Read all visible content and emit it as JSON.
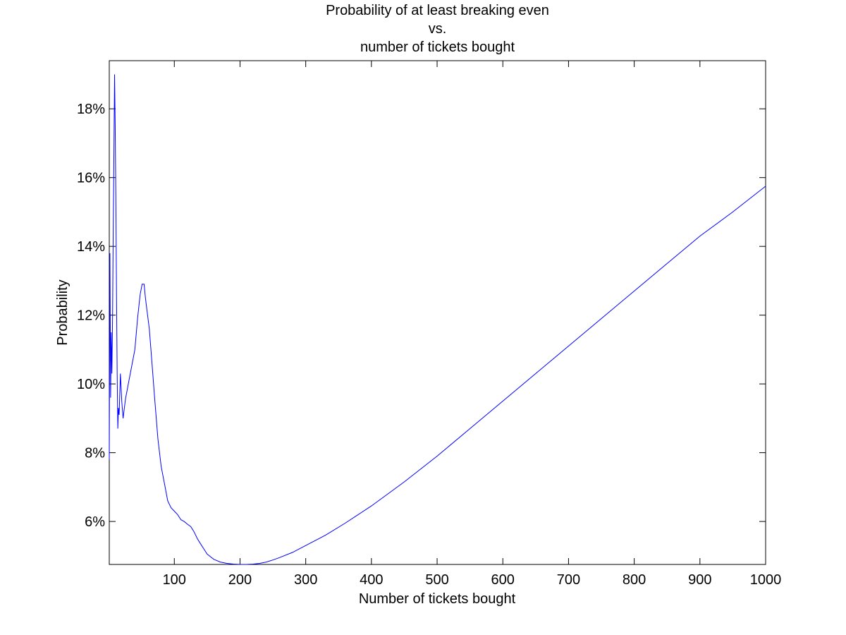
{
  "chart_data": {
    "type": "line",
    "title_lines": [
      "Probability of at least breaking even",
      "vs.",
      "number of tickets bought"
    ],
    "xlabel": "Number of tickets bought",
    "ylabel": "Probability",
    "xlim": [
      1,
      1000
    ],
    "ylim": [
      4.75,
      19.4
    ],
    "x_ticks": [
      100,
      200,
      300,
      400,
      500,
      600,
      700,
      800,
      900,
      1000
    ],
    "x_tick_labels": [
      "100",
      "200",
      "300",
      "400",
      "500",
      "600",
      "700",
      "800",
      "900",
      "1000"
    ],
    "y_ticks": [
      6,
      8,
      10,
      12,
      14,
      16,
      18
    ],
    "y_tick_labels": [
      "6%",
      "8%",
      "10%",
      "12%",
      "14%",
      "16%",
      "18%"
    ],
    "grid": false,
    "legend": "none",
    "series": [
      {
        "color": "#0000ff",
        "x": [
          1,
          2,
          3,
          4,
          5,
          6,
          7,
          8,
          9,
          10,
          11,
          12,
          13,
          14,
          15,
          16,
          18,
          20,
          22,
          24,
          26,
          28,
          30,
          33,
          36,
          40,
          44,
          48,
          51,
          54,
          56,
          58,
          62,
          66,
          70,
          75,
          80,
          85,
          90,
          95,
          100,
          105,
          110,
          115,
          120,
          125,
          130,
          135,
          140,
          145,
          150,
          160,
          170,
          180,
          190,
          200,
          210,
          220,
          230,
          240,
          250,
          260,
          280,
          300,
          330,
          360,
          400,
          450,
          500,
          550,
          600,
          650,
          700,
          750,
          800,
          850,
          900,
          950,
          1000
        ],
        "y": [
          7.8,
          13.8,
          9.6,
          11.5,
          10.3,
          12.0,
          14.5,
          16.5,
          19.0,
          17.5,
          15.5,
          12.5,
          10.3,
          8.7,
          9.3,
          9.1,
          10.3,
          9.5,
          9.0,
          9.3,
          9.6,
          9.8,
          10.0,
          10.3,
          10.6,
          11.0,
          11.9,
          12.6,
          12.9,
          12.9,
          12.5,
          12.2,
          11.6,
          10.6,
          9.6,
          8.4,
          7.6,
          7.1,
          6.6,
          6.4,
          6.3,
          6.2,
          6.05,
          6.0,
          5.92,
          5.85,
          5.7,
          5.5,
          5.35,
          5.2,
          5.05,
          4.9,
          4.82,
          4.78,
          4.76,
          4.75,
          4.75,
          4.76,
          4.78,
          4.82,
          4.88,
          4.95,
          5.1,
          5.3,
          5.6,
          5.95,
          6.45,
          7.15,
          7.9,
          8.7,
          9.5,
          10.3,
          11.1,
          11.9,
          12.7,
          13.5,
          14.3,
          15.0,
          15.75
        ]
      }
    ]
  }
}
